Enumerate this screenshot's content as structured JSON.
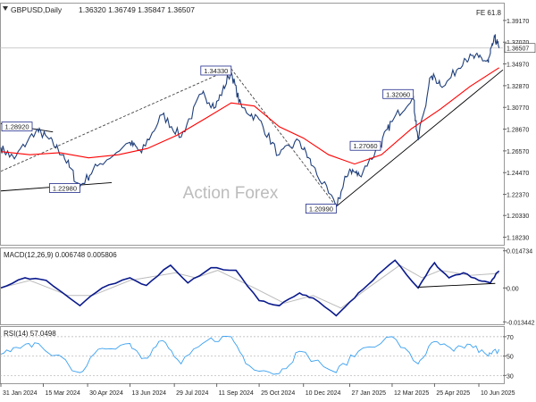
{
  "chart_data": {
    "type": "line",
    "symbol_header": "GBPUSD,Daily",
    "ohlc_header": "1.36320 1.36749 1.35847 1.36507",
    "fib_label": "FE 61.8",
    "watermark": "Action Forex",
    "colors": {
      "price": "#1f3f7a",
      "ma": "#ff0000",
      "macd": "#0a1a8c",
      "signal": "#bbbbbb",
      "rsi": "#3aa0f0",
      "trend": "#000000",
      "dashed": "#444444",
      "grid": "#b0b0b0",
      "current_price_line": "#bbbbbb",
      "label_border": "#1f2a8a"
    },
    "main_panel": {
      "ylim": [
        1.175,
        1.408
      ],
      "y_ticks": [
        "1.39170",
        "1.37070",
        "1.34970",
        "1.32870",
        "1.30770",
        "1.28670",
        "1.26570",
        "1.24470",
        "1.22370",
        "1.20330",
        "1.18230"
      ],
      "y_tick_values": [
        1.3917,
        1.3707,
        1.3497,
        1.3287,
        1.3077,
        1.2867,
        1.2657,
        1.2447,
        1.2237,
        1.2033,
        1.1823
      ],
      "current_price": 1.36507,
      "current_price_label": "1.36507",
      "annotations": [
        {
          "label": "1.28920",
          "date": "2024-01-27",
          "value": 1.2892
        },
        {
          "label": "1.22980",
          "date": "2024-04-22",
          "value": 1.2298
        },
        {
          "label": "1.34330",
          "date": "2024-09-26",
          "value": 1.3433
        },
        {
          "label": "1.20990",
          "date": "2025-01-13",
          "value": 1.2099
        },
        {
          "label": "1.27060",
          "date": "2025-02-28",
          "value": 1.2706
        },
        {
          "label": "1.32060",
          "date": "2025-04-03",
          "value": 1.3206
        }
      ],
      "price_series": {
        "name": "",
        "points": [
          [
            "2024-01-31",
            1.269
          ],
          [
            "2024-02-14",
            1.258
          ],
          [
            "2024-03-08",
            1.286
          ],
          [
            "2024-03-20",
            1.278
          ],
          [
            "2024-04-05",
            1.262
          ],
          [
            "2024-04-22",
            1.231
          ],
          [
            "2024-05-10",
            1.251
          ],
          [
            "2024-06-13",
            1.274
          ],
          [
            "2024-06-25",
            1.264
          ],
          [
            "2024-07-17",
            1.301
          ],
          [
            "2024-08-05",
            1.279
          ],
          [
            "2024-08-27",
            1.321
          ],
          [
            "2024-09-10",
            1.308
          ],
          [
            "2024-09-26",
            1.342
          ],
          [
            "2024-10-07",
            1.308
          ],
          [
            "2024-10-25",
            1.296
          ],
          [
            "2024-11-15",
            1.262
          ],
          [
            "2024-12-06",
            1.275
          ],
          [
            "2024-12-20",
            1.251
          ],
          [
            "2025-01-13",
            1.212
          ],
          [
            "2025-01-27",
            1.248
          ],
          [
            "2025-02-06",
            1.242
          ],
          [
            "2025-02-28",
            1.271
          ],
          [
            "2025-03-12",
            1.294
          ],
          [
            "2025-04-03",
            1.319
          ],
          [
            "2025-04-08",
            1.276
          ],
          [
            "2025-04-22",
            1.338
          ],
          [
            "2025-05-06",
            1.329
          ],
          [
            "2025-05-26",
            1.355
          ],
          [
            "2025-06-10",
            1.356
          ],
          [
            "2025-06-20",
            1.351
          ],
          [
            "2025-06-27",
            1.375
          ],
          [
            "2025-07-01",
            1.365
          ]
        ]
      },
      "ma_series": {
        "name": "",
        "points": [
          [
            "2024-01-31",
            1.265
          ],
          [
            "2024-03-01",
            1.262
          ],
          [
            "2024-04-01",
            1.264
          ],
          [
            "2024-05-01",
            1.259
          ],
          [
            "2024-06-01",
            1.262
          ],
          [
            "2024-07-01",
            1.268
          ],
          [
            "2024-08-01",
            1.281
          ],
          [
            "2024-09-01",
            1.298
          ],
          [
            "2024-09-26",
            1.312
          ],
          [
            "2024-10-20",
            1.309
          ],
          [
            "2024-11-15",
            1.289
          ],
          [
            "2024-12-10",
            1.278
          ],
          [
            "2025-01-05",
            1.262
          ],
          [
            "2025-02-01",
            1.253
          ],
          [
            "2025-03-01",
            1.262
          ],
          [
            "2025-04-01",
            1.287
          ],
          [
            "2025-05-01",
            1.306
          ],
          [
            "2025-06-01",
            1.328
          ],
          [
            "2025-07-01",
            1.346
          ]
        ]
      },
      "trendlines": [
        {
          "style": "solid",
          "from": [
            "2024-01-31",
            1.227
          ],
          "to": [
            "2024-05-25",
            1.235
          ]
        },
        {
          "style": "solid",
          "from": [
            "2024-01-31",
            1.292
          ],
          "to": [
            "2024-03-25",
            1.284
          ]
        },
        {
          "style": "dashed",
          "from": [
            "2024-01-31",
            1.246
          ],
          "to": [
            "2024-09-26",
            1.345
          ]
        },
        {
          "style": "dashed",
          "from": [
            "2024-09-26",
            1.345
          ],
          "to": [
            "2025-01-13",
            1.212
          ]
        },
        {
          "style": "solid",
          "from": [
            "2025-01-13",
            1.212
          ],
          "to": [
            "2025-07-05",
            1.344
          ]
        }
      ]
    },
    "macd_panel": {
      "label": "MACD(12,26,9) 0.006748 0.005806",
      "ylim": [
        -0.0144,
        0.0157
      ],
      "y_ticks": [
        "0.014734",
        "0.00",
        "-0.013442"
      ],
      "y_tick_values": [
        0.014734,
        0.0,
        -0.013442
      ],
      "macd_series": {
        "name": "",
        "points": [
          [
            "2024-01-31",
            0.0
          ],
          [
            "2024-02-25",
            0.004
          ],
          [
            "2024-03-18",
            0.003
          ],
          [
            "2024-04-22",
            -0.007
          ],
          [
            "2024-05-15",
            0.0
          ],
          [
            "2024-06-13",
            0.004
          ],
          [
            "2024-06-30",
            0.001
          ],
          [
            "2024-07-25",
            0.009
          ],
          [
            "2024-08-12",
            0.002
          ],
          [
            "2024-09-05",
            0.008
          ],
          [
            "2024-10-01",
            0.007
          ],
          [
            "2024-10-25",
            -0.005
          ],
          [
            "2024-11-15",
            -0.007
          ],
          [
            "2024-12-06",
            -0.002
          ],
          [
            "2024-12-20",
            -0.004
          ],
          [
            "2025-01-13",
            -0.011
          ],
          [
            "2025-02-01",
            -0.004
          ],
          [
            "2025-02-20",
            0.003
          ],
          [
            "2025-03-15",
            0.011
          ],
          [
            "2025-04-08",
            0.0
          ],
          [
            "2025-04-25",
            0.01
          ],
          [
            "2025-05-10",
            0.004
          ],
          [
            "2025-05-25",
            0.006
          ],
          [
            "2025-06-10",
            0.003
          ],
          [
            "2025-06-22",
            0.002
          ],
          [
            "2025-07-01",
            0.0067
          ]
        ]
      },
      "signal_series": {
        "name": "",
        "points": [
          [
            "2024-01-31",
            0.0
          ],
          [
            "2024-03-01",
            0.003
          ],
          [
            "2024-04-10",
            -0.003
          ],
          [
            "2024-05-05",
            -0.003
          ],
          [
            "2024-06-13",
            0.003
          ],
          [
            "2024-07-30",
            0.006
          ],
          [
            "2024-08-20",
            0.004
          ],
          [
            "2024-09-12",
            0.007
          ],
          [
            "2024-10-20",
            0.0
          ],
          [
            "2024-11-20",
            -0.006
          ],
          [
            "2024-12-20",
            -0.003
          ],
          [
            "2025-01-18",
            -0.008
          ],
          [
            "2025-02-15",
            0.0
          ],
          [
            "2025-03-20",
            0.009
          ],
          [
            "2025-04-12",
            0.004
          ],
          [
            "2025-05-01",
            0.007
          ],
          [
            "2025-06-01",
            0.005
          ],
          [
            "2025-07-01",
            0.0058
          ]
        ]
      },
      "trendline": {
        "from": [
          "2025-04-08",
          0.0003
        ],
        "to": [
          "2025-06-27",
          0.0018
        ]
      }
    },
    "rsi_panel": {
      "label": "RSI(14) 57.0498",
      "ylim": [
        22,
        80
      ],
      "y_ticks": [
        "70",
        "50",
        "30"
      ],
      "y_tick_values": [
        70,
        50,
        30
      ],
      "rsi_series": {
        "name": "",
        "points": [
          [
            "2024-01-31",
            52
          ],
          [
            "2024-02-20",
            58
          ],
          [
            "2024-03-10",
            63
          ],
          [
            "2024-04-22",
            33
          ],
          [
            "2024-05-15",
            58
          ],
          [
            "2024-06-13",
            63
          ],
          [
            "2024-06-28",
            48
          ],
          [
            "2024-07-17",
            66
          ],
          [
            "2024-08-05",
            42
          ],
          [
            "2024-09-01",
            66
          ],
          [
            "2024-09-26",
            70
          ],
          [
            "2024-10-15",
            40
          ],
          [
            "2024-11-15",
            32
          ],
          [
            "2024-12-06",
            55
          ],
          [
            "2025-01-13",
            33
          ],
          [
            "2025-02-05",
            55
          ],
          [
            "2025-03-12",
            70
          ],
          [
            "2025-04-08",
            42
          ],
          [
            "2025-04-25",
            65
          ],
          [
            "2025-05-15",
            55
          ],
          [
            "2025-06-01",
            62
          ],
          [
            "2025-06-20",
            50
          ],
          [
            "2025-07-01",
            57
          ]
        ]
      }
    },
    "x_axis": {
      "range": [
        "2024-01-31",
        "2025-07-05"
      ],
      "ticks": [
        {
          "label": "31 Jan 2024",
          "date": "2024-01-31"
        },
        {
          "label": "15 Mar 2024",
          "date": "2024-03-15"
        },
        {
          "label": "30 Apr 2024",
          "date": "2024-04-30"
        },
        {
          "label": "13 Jun 2024",
          "date": "2024-06-13"
        },
        {
          "label": "29 Jul 2024",
          "date": "2024-07-29"
        },
        {
          "label": "11 Sep 2024",
          "date": "2024-09-11"
        },
        {
          "label": "25 Oct 2024",
          "date": "2024-10-25"
        },
        {
          "label": "10 Dec 2024",
          "date": "2024-12-10"
        },
        {
          "label": "27 Jan 2025",
          "date": "2025-01-27"
        },
        {
          "label": "12 Mar 2025",
          "date": "2025-03-12"
        },
        {
          "label": "25 Apr 2025",
          "date": "2025-04-25"
        },
        {
          "label": "10 Jun 2025",
          "date": "2025-06-10"
        }
      ]
    }
  }
}
